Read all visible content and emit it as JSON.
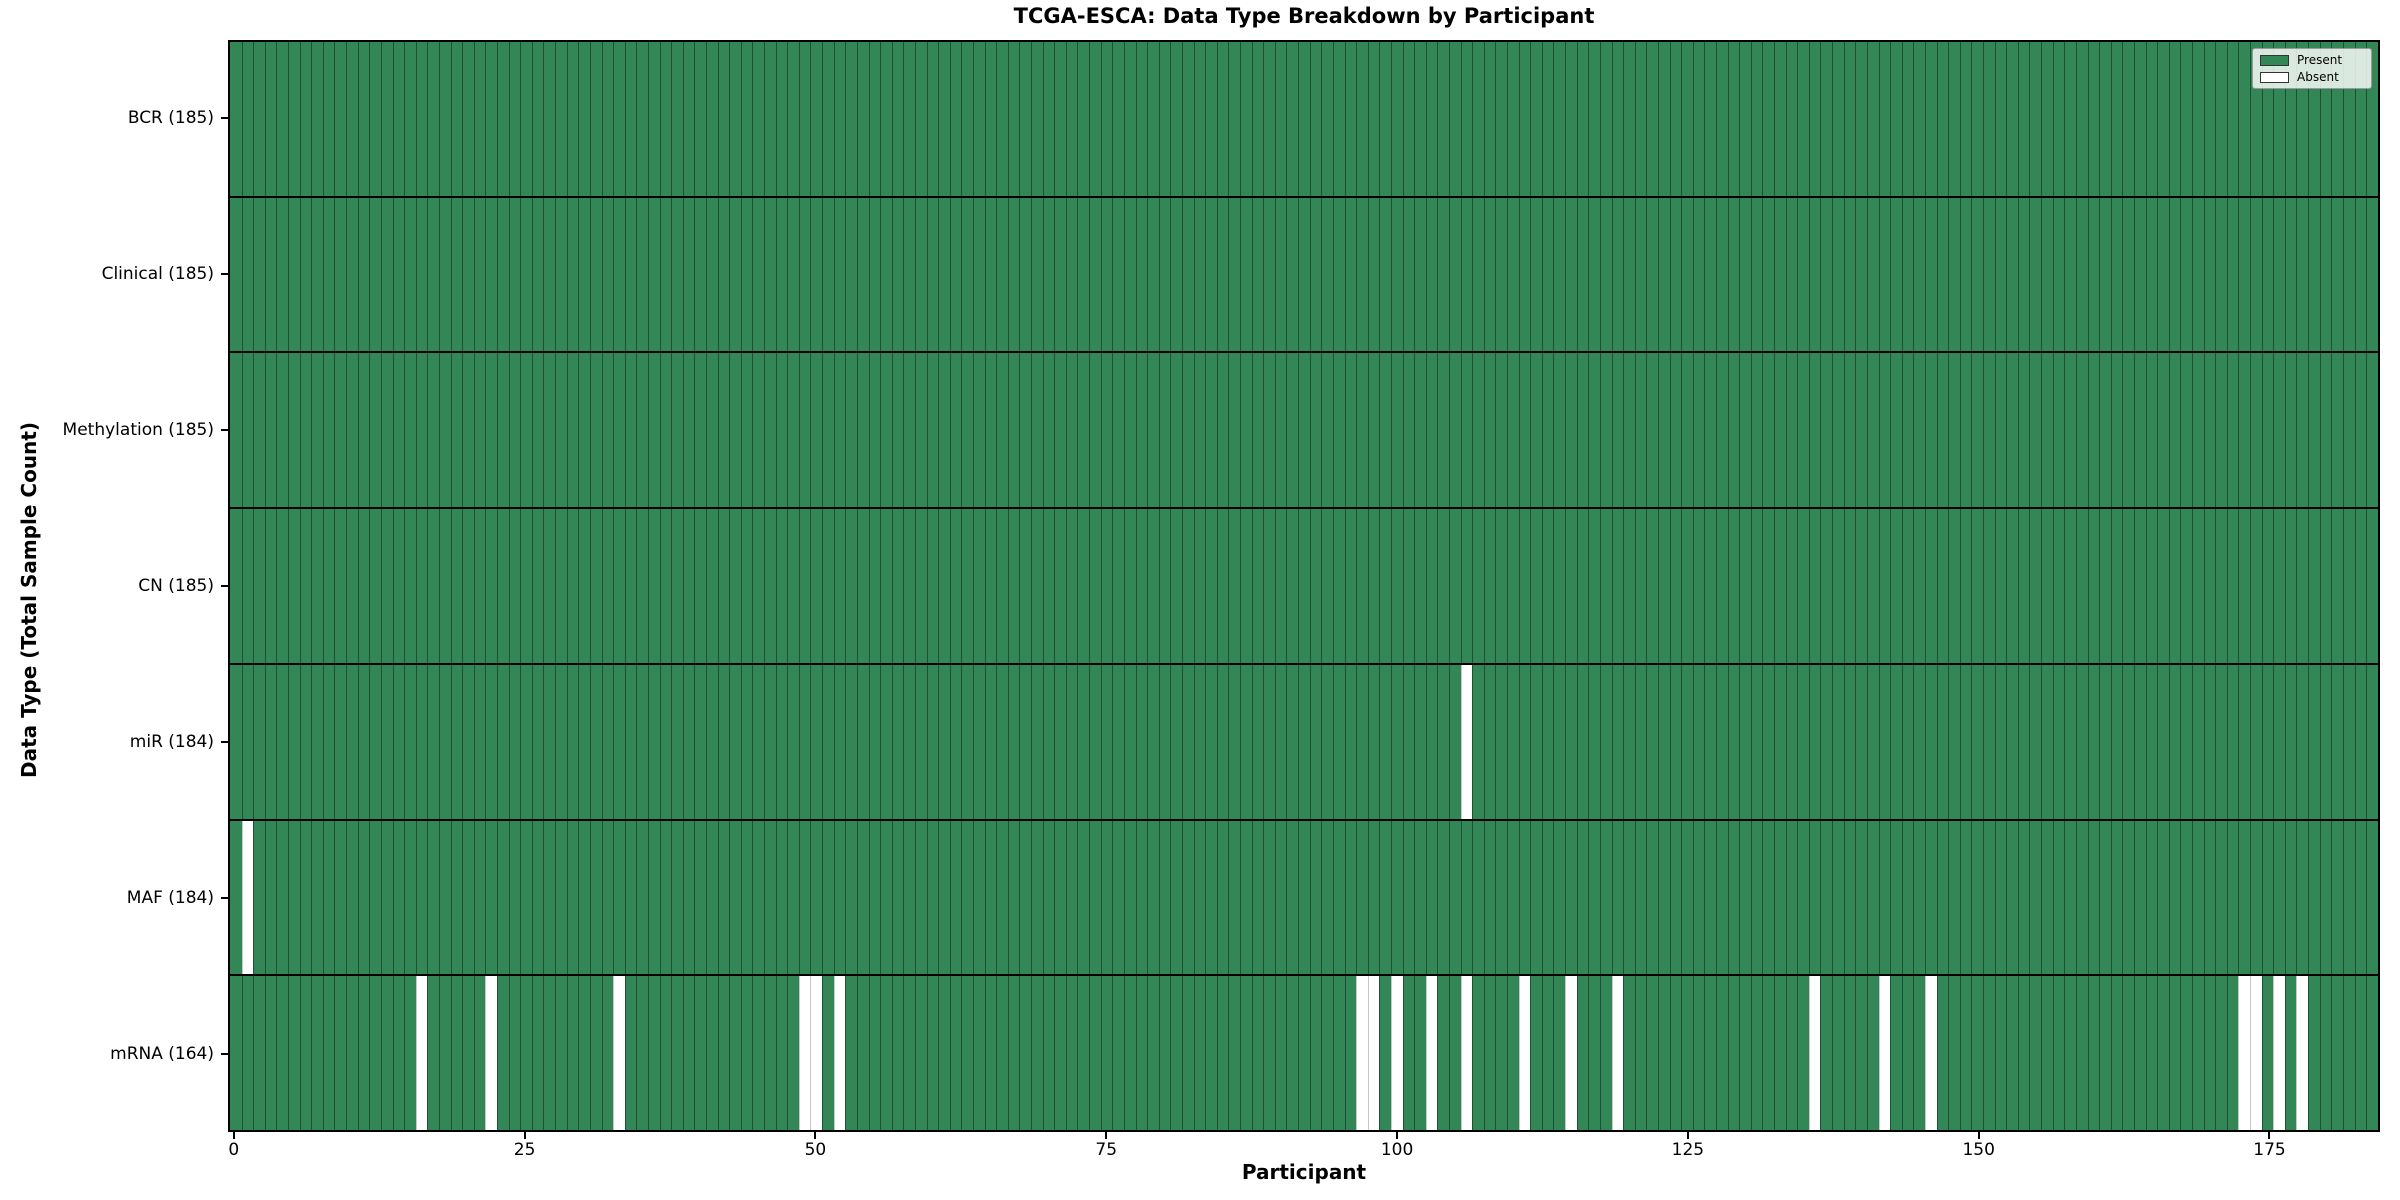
{
  "title": "TCGA-ESCA: Data Type Breakdown by Participant",
  "xlabel": "Participant",
  "ylabel": "Data Type (Total Sample Count)",
  "legend": {
    "present_label": "Present",
    "absent_label": "Absent",
    "position": "upper right"
  },
  "colors": {
    "present": "#338757",
    "absent": "#ffffff",
    "bar_edge": "#1d5133",
    "row_divider": "#000000"
  },
  "chart_data": {
    "type": "heatmap",
    "title": "TCGA-ESCA: Data Type Breakdown by Participant",
    "xlabel": "Participant",
    "ylabel": "Data Type (Total Sample Count)",
    "legend": [
      "Present",
      "Absent"
    ],
    "legend_position": "upper right",
    "n_participants": 185,
    "x_ticks": [
      0,
      25,
      50,
      75,
      100,
      125,
      150,
      175
    ],
    "xlim": [
      -0.5,
      184.5
    ],
    "grid": false,
    "rows": [
      {
        "label": "BCR (185)",
        "data_type": "BCR",
        "total": 185,
        "absent_participants": []
      },
      {
        "label": "Clinical (185)",
        "data_type": "Clinical",
        "total": 185,
        "absent_participants": []
      },
      {
        "label": "Methylation (185)",
        "data_type": "Methylation",
        "total": 185,
        "absent_participants": []
      },
      {
        "label": "CN (185)",
        "data_type": "CN",
        "total": 185,
        "absent_participants": []
      },
      {
        "label": "miR (184)",
        "data_type": "miR",
        "total": 184,
        "absent_participants": [
          106
        ]
      },
      {
        "label": "MAF (184)",
        "data_type": "MAF",
        "total": 184,
        "absent_participants": [
          1
        ]
      },
      {
        "label": "mRNA (164)",
        "data_type": "mRNA",
        "total": 164,
        "absent_participants": [
          16,
          22,
          33,
          49,
          50,
          52,
          97,
          98,
          100,
          103,
          106,
          111,
          115,
          119,
          136,
          142,
          146,
          173,
          174,
          176,
          178
        ]
      }
    ]
  }
}
